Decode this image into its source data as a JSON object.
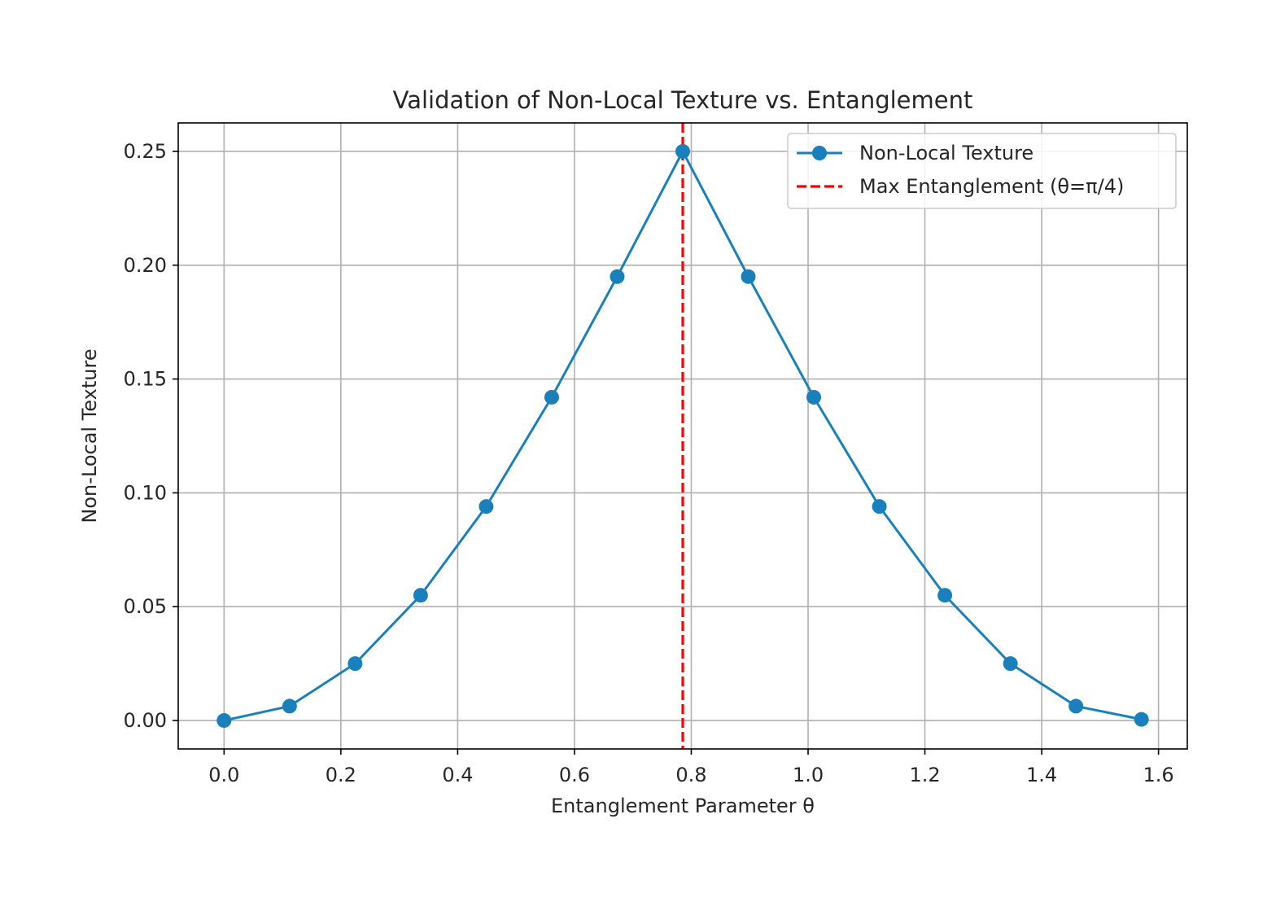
{
  "chart_data": {
    "type": "line",
    "title": "Validation of Non-Local Texture vs. Entanglement",
    "xlabel": "Entanglement Parameter θ",
    "ylabel": "Non-Local Texture",
    "xlim": [
      -0.0785,
      1.6493
    ],
    "ylim": [
      -0.0125,
      0.2625
    ],
    "xticks": [
      0.0,
      0.2,
      0.4,
      0.6,
      0.8,
      1.0,
      1.2,
      1.4,
      1.6
    ],
    "xtick_labels": [
      "0.0",
      "0.2",
      "0.4",
      "0.6",
      "0.8",
      "1.0",
      "1.2",
      "1.4",
      "1.6"
    ],
    "yticks": [
      0.0,
      0.05,
      0.1,
      0.15,
      0.2,
      0.25
    ],
    "ytick_labels": [
      "0.00",
      "0.05",
      "0.10",
      "0.15",
      "0.20",
      "0.25"
    ],
    "grid": true,
    "legend_position": "upper-right",
    "series": [
      {
        "name": "Non-Local Texture",
        "color": "#1a80bb",
        "style": "solid-with-circle-markers",
        "x": [
          0.0,
          0.1122,
          0.2244,
          0.3366,
          0.4488,
          0.561,
          0.6732,
          0.7854,
          0.8976,
          1.0098,
          1.122,
          1.2342,
          1.3464,
          1.4586,
          1.5708
        ],
        "y": [
          0.0,
          0.0063,
          0.025,
          0.055,
          0.094,
          0.142,
          0.195,
          0.25,
          0.195,
          0.142,
          0.094,
          0.055,
          0.025,
          0.0063,
          0.0005
        ]
      }
    ],
    "reference_lines": [
      {
        "name": "Max Entanglement (θ=π/4)",
        "orientation": "vertical",
        "x": 0.7854,
        "color": "#ff0000",
        "style": "dashed"
      }
    ]
  }
}
